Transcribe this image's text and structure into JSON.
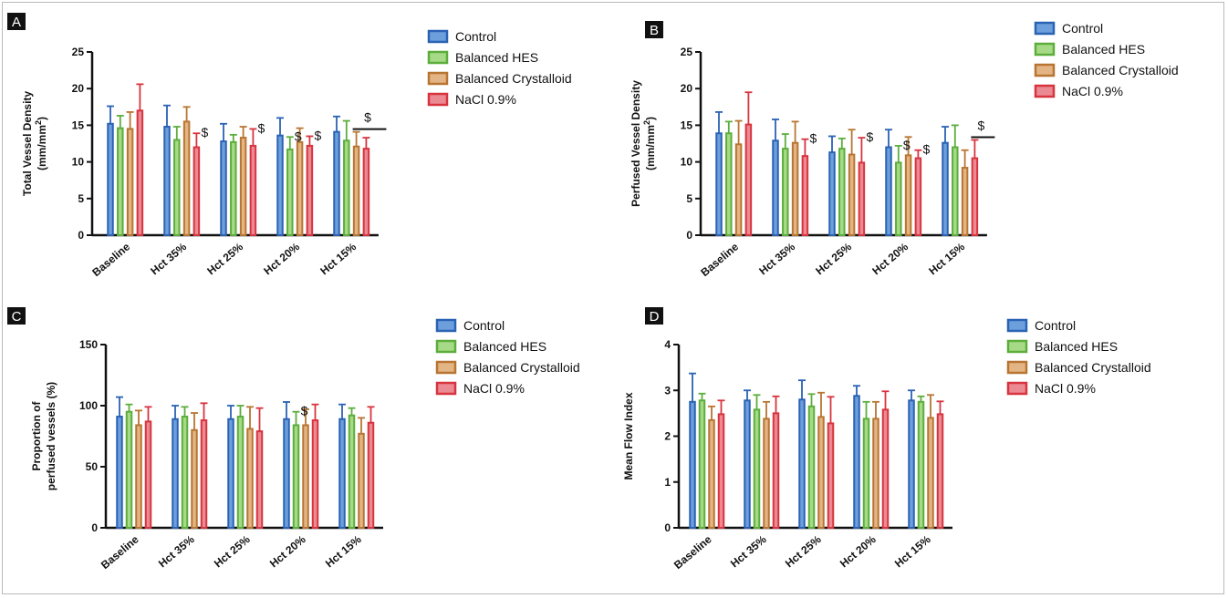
{
  "colors": {
    "Control": {
      "stroke": "#2a62b4",
      "fill": "#6d9fdc"
    },
    "Balanced HES": {
      "stroke": "#5cae3c",
      "fill": "#a7da86"
    },
    "Balanced Crystalloid": {
      "stroke": "#b87532",
      "fill": "#e3b584"
    },
    "NaCl 0.9%": {
      "stroke": "#d7343f",
      "fill": "#eb8a93"
    }
  },
  "chart_data": [
    {
      "panel": "A",
      "type": "bar",
      "ylabel": "Total Vessel Density",
      "ylabel2": "(mm/mm",
      "ylabel_sup": "2",
      "ylabel2_end": ")",
      "ylim": [
        0,
        25
      ],
      "yticks": [
        0,
        5,
        10,
        15,
        20,
        25
      ],
      "categories": [
        "Baseline",
        "Hct 35%",
        "Hct 25%",
        "Hct 20%",
        "Hct 15%"
      ],
      "series": [
        {
          "name": "Control",
          "values": [
            15.2,
            14.8,
            12.8,
            13.6,
            14.1
          ],
          "errors": [
            2.4,
            2.9,
            2.4,
            2.4,
            2.1
          ]
        },
        {
          "name": "Balanced HES",
          "values": [
            14.6,
            13.0,
            12.7,
            11.7,
            12.9
          ],
          "errors": [
            1.7,
            1.8,
            1.0,
            1.7,
            2.7
          ]
        },
        {
          "name": "Balanced Crystalloid",
          "values": [
            14.5,
            15.5,
            13.3,
            12.7,
            12.1
          ],
          "errors": [
            2.3,
            2.0,
            1.5,
            1.9,
            2.0
          ]
        },
        {
          "name": "NaCl 0.9%",
          "values": [
            17.0,
            12.0,
            12.2,
            12.2,
            11.8
          ],
          "errors": [
            3.6,
            1.9,
            2.3,
            1.3,
            1.5
          ]
        }
      ],
      "markers": [
        {
          "text": "$",
          "category": 1,
          "series": 3
        },
        {
          "text": "$",
          "category": 2,
          "series": 3
        },
        {
          "text": "$",
          "category": 3,
          "series": 1
        },
        {
          "text": "$",
          "category": 3,
          "series": 3
        },
        {
          "text": "$",
          "category": 4,
          "span": [
            2,
            3
          ]
        }
      ]
    },
    {
      "panel": "B",
      "type": "bar",
      "ylabel": "Perfused Vessel Density",
      "ylabel2": "(mm/mm",
      "ylabel_sup": "2",
      "ylabel2_end": ")",
      "ylim": [
        0,
        25
      ],
      "yticks": [
        0,
        5,
        10,
        15,
        20,
        25
      ],
      "categories": [
        "Baseline",
        "Hct 35%",
        "Hct 25%",
        "Hct 20%",
        "Hct 15%"
      ],
      "series": [
        {
          "name": "Control",
          "values": [
            13.9,
            12.9,
            11.3,
            12.0,
            12.6
          ],
          "errors": [
            2.9,
            2.9,
            2.2,
            2.4,
            2.2
          ]
        },
        {
          "name": "Balanced HES",
          "values": [
            13.9,
            11.8,
            11.8,
            9.9,
            12.0
          ],
          "errors": [
            1.6,
            2.0,
            1.4,
            2.3,
            3.0
          ]
        },
        {
          "name": "Balanced Crystalloid",
          "values": [
            12.4,
            12.6,
            11.0,
            10.9,
            9.2
          ],
          "errors": [
            3.2,
            2.9,
            3.4,
            2.5,
            2.4
          ]
        },
        {
          "name": "NaCl 0.9%",
          "values": [
            15.1,
            10.8,
            9.9,
            10.5,
            10.5
          ],
          "errors": [
            4.4,
            2.3,
            3.4,
            1.1,
            2.5
          ]
        }
      ],
      "markers": [
        {
          "text": "$",
          "category": 1,
          "series": 3
        },
        {
          "text": "$",
          "category": 2,
          "series": 3
        },
        {
          "text": "$",
          "category": 3,
          "series": 1
        },
        {
          "text": "$",
          "category": 3,
          "series": 3
        },
        {
          "text": "$",
          "category": 4,
          "span": [
            3,
            3
          ]
        }
      ]
    },
    {
      "panel": "C",
      "type": "bar",
      "ylabel": "Proportion of",
      "ylabel2": "perfused vessels (%)",
      "ylim": [
        0,
        150
      ],
      "yticks": [
        0,
        50,
        100,
        150
      ],
      "categories": [
        "Baseline",
        "Hct 35%",
        "Hct 25%",
        "Hct 20%",
        "Hct 15%"
      ],
      "series": [
        {
          "name": "Control",
          "values": [
            91,
            89,
            89,
            89,
            89
          ],
          "errors": [
            16,
            11,
            11,
            14,
            12
          ]
        },
        {
          "name": "Balanced HES",
          "values": [
            95,
            91,
            91,
            84,
            92
          ],
          "errors": [
            6,
            8,
            9,
            11,
            6
          ]
        },
        {
          "name": "Balanced Crystalloid",
          "values": [
            84,
            80,
            81,
            84,
            77
          ],
          "errors": [
            12,
            14,
            18,
            13,
            13
          ]
        },
        {
          "name": "NaCl 0.9%",
          "values": [
            87,
            88,
            79,
            88,
            86
          ],
          "errors": [
            12,
            14,
            19,
            13,
            13
          ]
        }
      ],
      "markers": [
        {
          "text": "$",
          "category": 3,
          "series": 1
        }
      ]
    },
    {
      "panel": "D",
      "type": "bar",
      "ylabel": "Mean Flow Index",
      "ylim": [
        0,
        4
      ],
      "yticks": [
        0,
        1,
        2,
        3,
        4
      ],
      "categories": [
        "Baseline",
        "Hct 35%",
        "Hct 25%",
        "Hct 20%",
        "Hct 15%"
      ],
      "series": [
        {
          "name": "Control",
          "values": [
            2.75,
            2.78,
            2.8,
            2.88,
            2.78
          ],
          "errors": [
            0.62,
            0.22,
            0.42,
            0.22,
            0.22
          ]
        },
        {
          "name": "Balanced HES",
          "values": [
            2.78,
            2.58,
            2.65,
            2.38,
            2.75
          ],
          "errors": [
            0.15,
            0.32,
            0.27,
            0.37,
            0.12
          ]
        },
        {
          "name": "Balanced Crystalloid",
          "values": [
            2.35,
            2.38,
            2.42,
            2.38,
            2.4
          ],
          "errors": [
            0.3,
            0.37,
            0.53,
            0.37,
            0.5
          ]
        },
        {
          "name": "NaCl 0.9%",
          "values": [
            2.48,
            2.5,
            2.28,
            2.58,
            2.48
          ],
          "errors": [
            0.3,
            0.37,
            0.58,
            0.4,
            0.28
          ]
        }
      ],
      "markers": []
    }
  ]
}
